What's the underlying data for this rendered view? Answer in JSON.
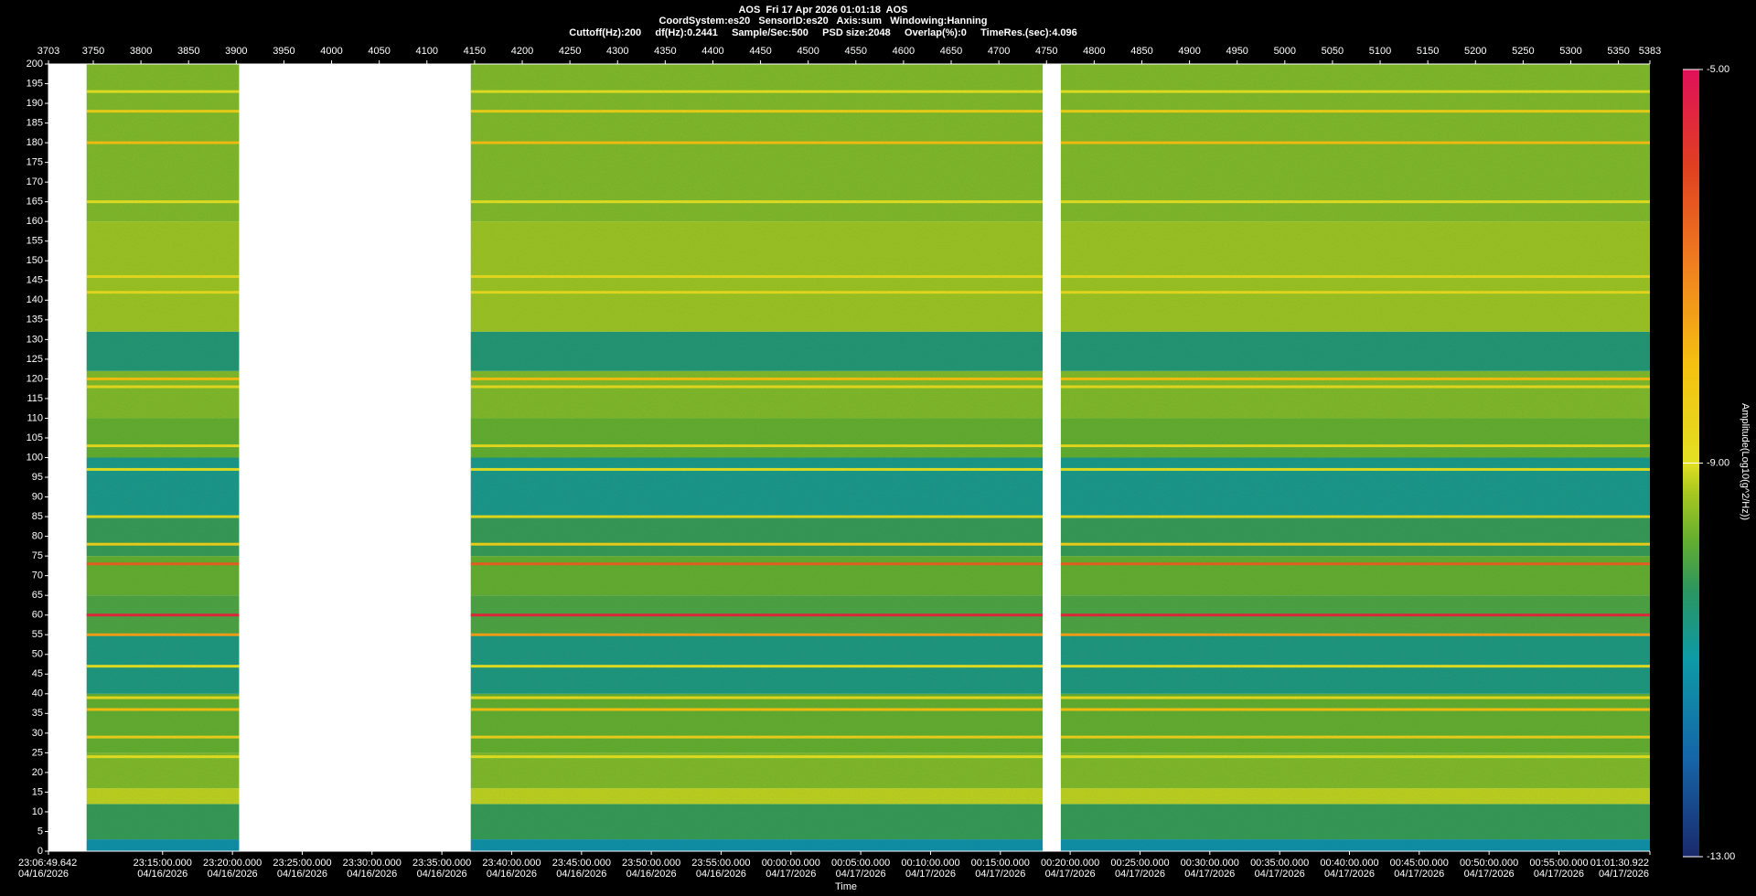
{
  "chart_data": {
    "type": "spectrogram",
    "title": "AOS  Fri 17 Apr 2026 01:01:18  AOS",
    "subtitle": [
      "CoordSystem:es20   SensorID:es20   Axis:sum   Windowing:Hanning",
      "Cuttoff(Hz):200     df(Hz):0.2441     Sample/Sec:500     PSD size:2048     Overlap(%):0     TimeRes.(sec):4.096"
    ],
    "x_label": "Time",
    "colorbar_label": "Amplitude(Log10(g^2/Hz))",
    "xlim": [
      3703,
      5383
    ],
    "xticks": [
      3703,
      3750,
      3800,
      3850,
      3900,
      3950,
      4000,
      4050,
      4100,
      4150,
      4200,
      4250,
      4300,
      4350,
      4400,
      4450,
      4500,
      4550,
      4600,
      4650,
      4700,
      4750,
      4800,
      4850,
      4900,
      4950,
      5000,
      5050,
      5100,
      5150,
      5200,
      5250,
      5300,
      5350,
      5383
    ],
    "time_ticks": [
      {
        "value": 3703,
        "label": "23:06:49.642",
        "date": "04/16/2026"
      },
      {
        "value": 3822.7,
        "label": "23:15:00.000",
        "date": "04/16/2026"
      },
      {
        "value": 3896,
        "label": "23:20:00.000",
        "date": "04/16/2026"
      },
      {
        "value": 3969.2,
        "label": "23:25:00.000",
        "date": "04/16/2026"
      },
      {
        "value": 4042.4,
        "label": "23:30:00.000",
        "date": "04/16/2026"
      },
      {
        "value": 4115.7,
        "label": "23:35:00.000",
        "date": "04/16/2026"
      },
      {
        "value": 4188.9,
        "label": "23:40:00.000",
        "date": "04/16/2026"
      },
      {
        "value": 4262.2,
        "label": "23:45:00.000",
        "date": "04/16/2026"
      },
      {
        "value": 4335.4,
        "label": "23:50:00.000",
        "date": "04/16/2026"
      },
      {
        "value": 4408.6,
        "label": "23:55:00.000",
        "date": "04/16/2026"
      },
      {
        "value": 4481.9,
        "label": "00:00:00.000",
        "date": "04/17/2026"
      },
      {
        "value": 4555.1,
        "label": "00:05:00.000",
        "date": "04/17/2026"
      },
      {
        "value": 4628.4,
        "label": "00:10:00.000",
        "date": "04/17/2026"
      },
      {
        "value": 4701.6,
        "label": "00:15:00.000",
        "date": "04/17/2026"
      },
      {
        "value": 4774.8,
        "label": "00:20:00.000",
        "date": "04/17/2026"
      },
      {
        "value": 4848.1,
        "label": "00:25:00.000",
        "date": "04/17/2026"
      },
      {
        "value": 4921.3,
        "label": "00:30:00.000",
        "date": "04/17/2026"
      },
      {
        "value": 4994.6,
        "label": "00:35:00.000",
        "date": "04/17/2026"
      },
      {
        "value": 5067.8,
        "label": "00:40:00.000",
        "date": "04/17/2026"
      },
      {
        "value": 5141,
        "label": "00:45:00.000",
        "date": "04/17/2026"
      },
      {
        "value": 5214.3,
        "label": "00:50:00.000",
        "date": "04/17/2026"
      },
      {
        "value": 5287.5,
        "label": "00:55:00.000",
        "date": "04/17/2026"
      },
      {
        "value": 5383,
        "label": "01:01:30.922",
        "date": "04/17/2026"
      }
    ],
    "ylim": [
      0,
      200
    ],
    "yticks": [
      0,
      5,
      10,
      15,
      20,
      25,
      30,
      35,
      40,
      45,
      50,
      55,
      60,
      65,
      70,
      75,
      80,
      85,
      90,
      95,
      100,
      105,
      110,
      115,
      120,
      125,
      130,
      135,
      140,
      145,
      150,
      155,
      160,
      165,
      170,
      175,
      180,
      185,
      190,
      195,
      200
    ],
    "segments": [
      [
        3743,
        3903
      ],
      [
        4146,
        4746
      ],
      [
        4765,
        5383
      ]
    ],
    "spectrum": {
      "bins": [
        0,
        3,
        12,
        16,
        25,
        40,
        55,
        65,
        75,
        85,
        100,
        110,
        122,
        132,
        160,
        200
      ],
      "values": [
        -11.2,
        -10.2,
        -9.2,
        -9.6,
        -9.8,
        -10.6,
        -10,
        -9.8,
        -10.2,
        -10.7,
        -9.8,
        -9.6,
        -10.5,
        -9.4,
        -9.6
      ]
    },
    "lines": {
      "freq": [
        24,
        29,
        36,
        39,
        47,
        55,
        60,
        73,
        78,
        85,
        97,
        103,
        118,
        120,
        142,
        146,
        165,
        180,
        188,
        193
      ],
      "values": [
        -9,
        -8.5,
        -8,
        -8.8,
        -9,
        -7.5,
        -5.5,
        -6.5,
        -8.5,
        -8.8,
        -9,
        -8.8,
        -8.8,
        -8,
        -8.8,
        -8.8,
        -9,
        -8,
        -8.5,
        -9
      ]
    },
    "colorbar_lim": [
      -13,
      -5
    ],
    "colorbar_ticks": [
      {
        "value": -5,
        "label": "-5.00"
      },
      {
        "value": -9,
        "label": "-9.00"
      },
      {
        "value": -13,
        "label": "-13.00"
      }
    ],
    "colormap": {
      "values": [
        -13,
        -12,
        -11,
        -10.3,
        -9.8,
        -9.3,
        -9,
        -8,
        -7,
        -6,
        -5
      ],
      "colors": [
        "#1a2a6c",
        "#1565a8",
        "#0e9aa7",
        "#2a9560",
        "#62ad30",
        "#a8c820",
        "#e2e022",
        "#f5c010",
        "#f08020",
        "#e04020",
        "#e0105a"
      ]
    }
  }
}
